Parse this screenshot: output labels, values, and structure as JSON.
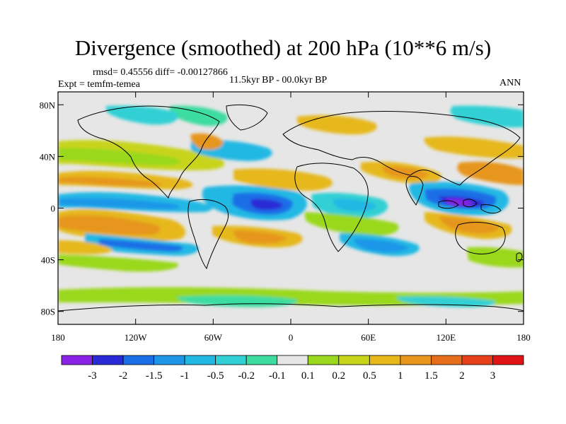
{
  "title": "Divergence (smoothed) at 200 hPa (10**6 m/s)",
  "stats": "rmsd= 0.45556 diff= -0.00127866",
  "experiment": "Expt = temfm-temea",
  "period": "11.5kyr BP - 00.0kyr BP",
  "season": "ANN",
  "lat_ticks": [
    "80N",
    "40N",
    "0",
    "40S",
    "80S"
  ],
  "lat_values": [
    80,
    40,
    0,
    -40,
    -80
  ],
  "lon_ticks": [
    "180",
    "120W",
    "60W",
    "0",
    "60E",
    "120E",
    "180"
  ],
  "lon_values": [
    -180,
    -120,
    -60,
    0,
    60,
    120,
    180
  ],
  "colorbar": {
    "labels": [
      "-3",
      "-2",
      "-1.5",
      "-1",
      "-0.5",
      "-0.2",
      "-0.1",
      "0.1",
      "0.2",
      "0.5",
      "1",
      "1.5",
      "2",
      "3"
    ],
    "colors": [
      "#8a22e6",
      "#2a2ad6",
      "#1a6ee6",
      "#1e96e8",
      "#22b8e4",
      "#30d0d4",
      "#3cdca0",
      "#e6e6e6",
      "#9ad81e",
      "#c8d41a",
      "#e6b81a",
      "#e6961a",
      "#e66e1a",
      "#e6401a",
      "#e01414"
    ]
  },
  "map_background": "#e6e6e6"
}
